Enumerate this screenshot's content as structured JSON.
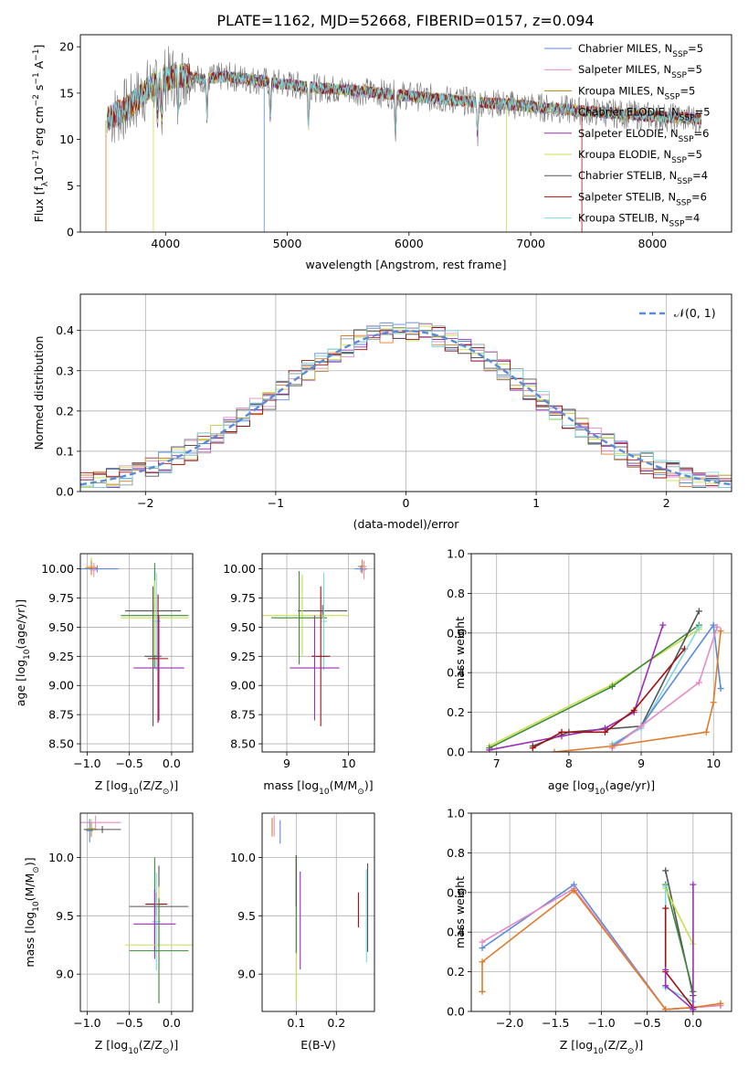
{
  "figure_title": "PLATE=1162, MJD=52668, FIBERID=0157, z=0.094",
  "colors": {
    "c1": "#5b8bd8",
    "c2": "#e58bc6",
    "c3": "#e07b2a",
    "c4": "#8e9a9a",
    "c5": "#9a2fb8",
    "c6": "#c8e04a",
    "c7": "#555555",
    "c8": "#a01010",
    "c9": "#7fd8e0",
    "c10": "#3c8a3c"
  },
  "chart_data": [
    {
      "id": "spectrum",
      "type": "line",
      "title": "PLATE=1162, MJD=52668, FIBERID=0157, z=0.094",
      "xlabel": "wavelength [Angstrom, rest frame]",
      "ylabel_main": "Flux [f",
      "ylabel_sub": "λ",
      "ylabel_rest": "10",
      "ylabel_exp1": "−17",
      "ylabel_mid": " erg cm",
      "ylabel_exp2": "−2",
      "ylabel_s": " s",
      "ylabel_exp3": "−1",
      "ylabel_end": " A",
      "ylabel_exp4": "−1",
      "ylabel_close": "]",
      "xlim": [
        3300,
        8650
      ],
      "ylim": [
        0,
        21.3
      ],
      "xticks": [
        4000,
        5000,
        6000,
        7000,
        8000
      ],
      "yticks": [
        0,
        5,
        10,
        15,
        20
      ],
      "grid": false,
      "legend": "top-right",
      "continuum": {
        "x": [
          3500,
          3700,
          3900,
          4100,
          4300,
          4500,
          4800,
          5200,
          5600,
          6000,
          6400,
          6800,
          7200,
          7600,
          8000,
          8400
        ],
        "y": [
          12.0,
          13.5,
          16.0,
          17.0,
          16.5,
          16.8,
          16.3,
          15.6,
          15.2,
          14.7,
          14.2,
          13.8,
          13.3,
          12.9,
          12.5,
          12.2
        ]
      },
      "series": [
        {
          "name": "Chabrier MILES, N",
          "sub": "SSP",
          "val": "=5",
          "color": "#5b8bd8"
        },
        {
          "name": "Salpeter MILES, N",
          "sub": "SSP",
          "val": "=5",
          "color": "#e58bc6"
        },
        {
          "name": "Kroupa MILES, N",
          "sub": "SSP",
          "val": "=5",
          "color": "#b08a10"
        },
        {
          "name": "Chabrier ELODIE, N",
          "sub": "SSP",
          "val": "=5",
          "color": "#8e9a9a"
        },
        {
          "name": "Salpeter ELODIE, N",
          "sub": "SSP",
          "val": "=6",
          "color": "#9a2fb8"
        },
        {
          "name": "Kroupa ELODIE, N",
          "sub": "SSP",
          "val": "=5",
          "color": "#c8e04a"
        },
        {
          "name": "Chabrier STELIB, N",
          "sub": "SSP",
          "val": "=4",
          "color": "#555555"
        },
        {
          "name": "Salpeter STELIB, N",
          "sub": "SSP",
          "val": "=6",
          "color": "#a01010"
        },
        {
          "name": "Kroupa STELIB, N",
          "sub": "SSP",
          "val": "=4",
          "color": "#7fd8e0"
        }
      ]
    },
    {
      "id": "residuals",
      "type": "line",
      "xlabel": "(data-model)/error",
      "ylabel": "Normed distribution",
      "xlim": [
        -2.5,
        2.5
      ],
      "ylim": [
        0,
        0.49
      ],
      "xticks": [
        -2,
        -1,
        0,
        1,
        2
      ],
      "yticks": [
        0.0,
        0.1,
        0.2,
        0.3,
        0.4
      ],
      "grid": true,
      "legend": "top-right",
      "normal_label": "𝒩(0, 1)"
    },
    {
      "id": "age_vs_z",
      "type": "scatter",
      "xlabel": "Z [log",
      "xlabel_sub": "10",
      "xlabel_rest": "(Z/Z",
      "xlabel_sub2": "⊙",
      "xlabel_end": ")]",
      "ylabel": "age  [log",
      "ylabel_sub": "10",
      "ylabel_rest": "(age/yr)]",
      "xlim": [
        -1.08,
        0.25
      ],
      "ylim": [
        8.43,
        10.13
      ],
      "xticks": [
        -1.0,
        -0.5,
        0.0
      ],
      "yticks": [
        8.5,
        8.75,
        9.0,
        9.25,
        9.5,
        9.75,
        10.0
      ],
      "grid": true,
      "points": [
        {
          "x": -0.95,
          "y": 10.02,
          "xe": 0.05,
          "ye": 0.08,
          "color": "#c8e04a"
        },
        {
          "x": -0.95,
          "y": 10.01,
          "xe": 0.07,
          "ye": 0.06,
          "color": "#e07b2a"
        },
        {
          "x": -0.88,
          "y": 10.0,
          "xe": 0.25,
          "ye": 0.03,
          "color": "#5b8bd8"
        },
        {
          "x": -0.92,
          "y": 9.99,
          "xe": 0.05,
          "ye": 0.06,
          "color": "#e58bc6"
        },
        {
          "x": -0.22,
          "y": 9.64,
          "xe": 0.33,
          "ye": 0.05,
          "color": "#555555"
        },
        {
          "x": -0.2,
          "y": 9.6,
          "xe": 0.4,
          "ye": 0.45,
          "color": "#3c8a3c"
        },
        {
          "x": -0.2,
          "y": 9.58,
          "xe": 0.4,
          "ye": 0.32,
          "color": "#c8e04a"
        },
        {
          "x": -0.18,
          "y": 9.55,
          "xe": 0.05,
          "ye": 0.42,
          "color": "#7fd8e0"
        },
        {
          "x": -0.22,
          "y": 9.25,
          "xe": 0.1,
          "ye": 0.6,
          "color": "#555555"
        },
        {
          "x": -0.16,
          "y": 9.23,
          "xe": 0.12,
          "ye": 0.55,
          "color": "#a01010"
        },
        {
          "x": -0.15,
          "y": 9.15,
          "xe": 0.3,
          "ye": 0.45,
          "color": "#9a2fb8"
        }
      ]
    },
    {
      "id": "age_vs_mass",
      "type": "scatter",
      "xlabel": "mass [log",
      "xlabel_sub": "10",
      "xlabel_rest": "(M/M",
      "xlabel_sub2": "⊙",
      "xlabel_end": ")]",
      "xlim": [
        8.6,
        10.42
      ],
      "ylim": [
        8.43,
        10.13
      ],
      "xticks": [
        9,
        10
      ],
      "yticks": [
        8.5,
        8.75,
        9.0,
        9.25,
        9.5,
        9.75,
        10.0
      ],
      "grid": true,
      "points": [
        {
          "x": 10.22,
          "y": 10.02,
          "xe": 0.07,
          "ye": 0.06,
          "color": "#e07b2a"
        },
        {
          "x": 10.2,
          "y": 10.0,
          "xe": 0.1,
          "ye": 0.03,
          "color": "#5b8bd8"
        },
        {
          "x": 10.25,
          "y": 9.99,
          "xe": 0.03,
          "ye": 0.08,
          "color": "#e58bc6"
        },
        {
          "x": 9.58,
          "y": 9.64,
          "xe": 0.4,
          "ye": 0.05,
          "color": "#555555"
        },
        {
          "x": 9.25,
          "y": 9.6,
          "xe": 0.75,
          "ye": 0.35,
          "color": "#c8e04a"
        },
        {
          "x": 9.2,
          "y": 9.58,
          "xe": 0.45,
          "ye": 0.4,
          "color": "#3c8a3c"
        },
        {
          "x": 9.6,
          "y": 9.55,
          "xe": 0.05,
          "ye": 0.42,
          "color": "#7fd8e0"
        },
        {
          "x": 9.55,
          "y": 9.25,
          "xe": 0.15,
          "ye": 0.6,
          "color": "#a01010"
        },
        {
          "x": 9.45,
          "y": 9.15,
          "xe": 0.4,
          "ye": 0.45,
          "color": "#9a2fb8"
        }
      ]
    },
    {
      "id": "weight_vs_age",
      "type": "line",
      "xlabel": "age  [log",
      "xlabel_sub": "10",
      "xlabel_rest": "(age/yr)]",
      "ylabel": "mass weight",
      "xlim": [
        6.65,
        10.25
      ],
      "ylim": [
        0,
        1.0
      ],
      "xticks": [
        7,
        8,
        9,
        10
      ],
      "yticks": [
        0.0,
        0.2,
        0.4,
        0.6,
        0.8,
        1.0
      ],
      "grid": true,
      "lines": [
        {
          "color": "#c8e04a",
          "x": [
            6.9,
            8.6,
            9.8
          ],
          "y": [
            0.03,
            0.34,
            0.62
          ]
        },
        {
          "color": "#3c8a3c",
          "x": [
            6.9,
            8.6,
            9.8
          ],
          "y": [
            0.02,
            0.33,
            0.64
          ]
        },
        {
          "color": "#555555",
          "x": [
            7.5,
            8.0,
            9.0,
            9.8
          ],
          "y": [
            0.03,
            0.1,
            0.13,
            0.71
          ]
        },
        {
          "color": "#9a2fb8",
          "x": [
            6.9,
            7.9,
            8.5,
            8.9,
            9.3
          ],
          "y": [
            0.01,
            0.08,
            0.12,
            0.2,
            0.64
          ]
        },
        {
          "color": "#a01010",
          "x": [
            7.5,
            7.9,
            8.5,
            8.9,
            9.6
          ],
          "y": [
            0.02,
            0.1,
            0.1,
            0.21,
            0.52
          ]
        },
        {
          "color": "#7fd8e0",
          "x": [
            8.6,
            9.0,
            9.8
          ],
          "y": [
            0.04,
            0.12,
            0.63
          ]
        },
        {
          "color": "#5b8bd8",
          "x": [
            8.6,
            9.0,
            10.0,
            10.1
          ],
          "y": [
            0.03,
            0.13,
            0.64,
            0.32
          ]
        },
        {
          "color": "#e58bc6",
          "x": [
            8.6,
            9.0,
            9.8,
            10.05
          ],
          "y": [
            0.02,
            0.13,
            0.35,
            0.63
          ]
        },
        {
          "color": "#e07b2a",
          "x": [
            7.8,
            8.6,
            9.9,
            10.0,
            10.1
          ],
          "y": [
            0.0,
            0.03,
            0.1,
            0.25,
            0.61
          ]
        }
      ]
    },
    {
      "id": "mass_vs_z",
      "type": "scatter",
      "xlabel": "Z [log",
      "xlabel_sub": "10",
      "xlabel_rest": "(Z/Z",
      "xlabel_sub2": "⊙",
      "xlabel_end": ")]",
      "ylabel": "mass [log",
      "ylabel_sub": "10",
      "ylabel_rest": "(M/M",
      "ylabel_sub2": "⊙",
      "ylabel_end": ")]",
      "xlim": [
        -1.08,
        0.25
      ],
      "ylim": [
        8.68,
        10.38
      ],
      "xticks": [
        -1.0,
        -0.5,
        0.0
      ],
      "yticks": [
        9.0,
        9.5,
        10.0
      ],
      "grid": true,
      "points": [
        {
          "x": -0.95,
          "y": 10.25,
          "xe": 0.05,
          "ye": 0.08,
          "color": "#c8e04a"
        },
        {
          "x": -0.95,
          "y": 10.24,
          "xe": 0.07,
          "ye": 0.06,
          "color": "#e07b2a"
        },
        {
          "x": -0.9,
          "y": 10.3,
          "xe": 0.3,
          "ye": 0.06,
          "color": "#e58bc6"
        },
        {
          "x": -0.82,
          "y": 10.24,
          "xe": 0.22,
          "ye": 0.03,
          "color": "#555555"
        },
        {
          "x": -0.97,
          "y": 10.23,
          "xe": 0.04,
          "ye": 0.1,
          "color": "#5b8bd8"
        },
        {
          "x": -0.15,
          "y": 9.58,
          "xe": 0.35,
          "ye": 0.35,
          "color": "#555555"
        },
        {
          "x": -0.2,
          "y": 9.6,
          "xe": 0.1,
          "ye": 0.4,
          "color": "#3c8a3c"
        },
        {
          "x": -0.18,
          "y": 9.6,
          "xe": 0.13,
          "ye": 0.1,
          "color": "#a01010"
        },
        {
          "x": -0.18,
          "y": 9.45,
          "xe": 0.05,
          "ye": 0.42,
          "color": "#7fd8e0"
        },
        {
          "x": -0.2,
          "y": 9.43,
          "xe": 0.25,
          "ye": 0.3,
          "color": "#9a2fb8"
        },
        {
          "x": -0.15,
          "y": 9.25,
          "xe": 0.4,
          "ye": 0.5,
          "color": "#c8e04a"
        },
        {
          "x": -0.15,
          "y": 9.2,
          "xe": 0.35,
          "ye": 0.45,
          "color": "#3c8a3c"
        }
      ]
    },
    {
      "id": "mass_vs_ebv",
      "type": "scatter",
      "xlabel": "E(B-V)",
      "xlim": [
        0.015,
        0.295
      ],
      "ylim": [
        8.68,
        10.38
      ],
      "xticks": [
        0.1,
        0.2
      ],
      "yticks": [
        9.0,
        9.5,
        10.0
      ],
      "grid": true,
      "points": [
        {
          "x": 0.04,
          "y": 10.26,
          "xe": 0.0,
          "ye": 0.08,
          "color": "#e07b2a"
        },
        {
          "x": 0.045,
          "y": 10.27,
          "xe": 0.0,
          "ye": 0.09,
          "color": "#e58bc6"
        },
        {
          "x": 0.06,
          "y": 10.22,
          "xe": 0.0,
          "ye": 0.1,
          "color": "#5b8bd8"
        },
        {
          "x": 0.1,
          "y": 9.38,
          "xe": 0.0,
          "ye": 0.62,
          "color": "#c8e04a"
        },
        {
          "x": 0.1,
          "y": 9.6,
          "xe": 0.0,
          "ye": 0.42,
          "color": "#3c8a3c"
        },
        {
          "x": 0.1,
          "y": 9.8,
          "xe": 0.0,
          "ye": 0.22,
          "color": "#555555"
        },
        {
          "x": 0.11,
          "y": 9.46,
          "xe": 0.0,
          "ye": 0.42,
          "color": "#9a2fb8"
        },
        {
          "x": 0.255,
          "y": 9.55,
          "xe": 0.0,
          "ye": 0.15,
          "color": "#a01010"
        },
        {
          "x": 0.275,
          "y": 9.5,
          "xe": 0.0,
          "ye": 0.4,
          "color": "#7fd8e0"
        },
        {
          "x": 0.278,
          "y": 9.57,
          "xe": 0.0,
          "ye": 0.38,
          "color": "#555555"
        }
      ]
    },
    {
      "id": "weight_vs_z",
      "type": "line",
      "xlabel": "Z [log",
      "xlabel_sub": "10",
      "xlabel_rest": "(Z/Z",
      "xlabel_sub2": "⊙",
      "xlabel_end": ")]",
      "ylabel": "mass weight",
      "xlim": [
        -2.42,
        0.42
      ],
      "ylim": [
        0,
        1.0
      ],
      "xticks": [
        -2.0,
        -1.5,
        -1.0,
        -0.5,
        0.0
      ],
      "yticks": [
        0.0,
        0.2,
        0.4,
        0.6,
        0.8,
        1.0
      ],
      "grid": true,
      "lines": [
        {
          "color": "#5b8bd8",
          "x": [
            -2.3,
            -1.3,
            -0.3,
            0.0,
            0.3
          ],
          "y": [
            0.32,
            0.64,
            0.01,
            0.02,
            0.03
          ]
        },
        {
          "color": "#e58bc6",
          "x": [
            -2.3,
            -1.3,
            -0.3,
            0.0,
            0.3
          ],
          "y": [
            0.35,
            0.62,
            0.01,
            0.02,
            0.03
          ]
        },
        {
          "color": "#e07b2a",
          "x": [
            -2.3,
            -2.3,
            -1.3,
            -0.3,
            0.0,
            0.3
          ],
          "y": [
            0.1,
            0.25,
            0.61,
            0.01,
            0.02,
            0.04
          ]
        },
        {
          "color": "#555555",
          "x": [
            -0.3,
            0.0
          ],
          "y": [
            0.71,
            0.08
          ]
        },
        {
          "color": "#3c8a3c",
          "x": [
            -0.3,
            0.0
          ],
          "y": [
            0.64,
            0.1
          ]
        },
        {
          "color": "#c8e04a",
          "x": [
            -0.3,
            0.0
          ],
          "y": [
            0.62,
            0.34
          ]
        },
        {
          "color": "#7fd8e0",
          "x": [
            -0.3,
            -0.3,
            0.0
          ],
          "y": [
            0.63,
            0.12,
            0.05
          ]
        },
        {
          "color": "#a01010",
          "x": [
            -0.3,
            -0.3,
            0.0
          ],
          "y": [
            0.52,
            0.2,
            0.02
          ]
        },
        {
          "color": "#9a2fb8",
          "x": [
            -0.3,
            -0.3,
            0.0,
            0.0
          ],
          "y": [
            0.21,
            0.13,
            0.01,
            0.64
          ]
        }
      ]
    }
  ]
}
